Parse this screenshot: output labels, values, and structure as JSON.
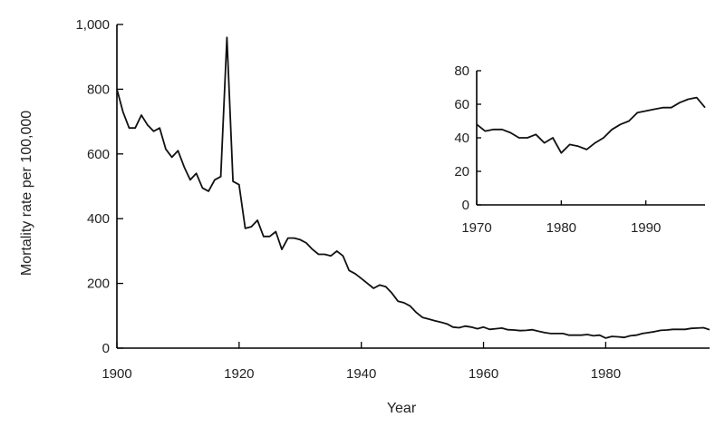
{
  "chart_data": [
    {
      "type": "line",
      "xlabel": "Year",
      "ylabel": "Mortality rate per 100,000",
      "xlim": [
        1900,
        1997
      ],
      "ylim": [
        0,
        1000
      ],
      "x_ticks": [
        1900,
        1920,
        1940,
        1960,
        1980
      ],
      "y_ticks": [
        0,
        200,
        400,
        600,
        800,
        1000
      ],
      "x_tick_labels": [
        "1900",
        "1920",
        "1940",
        "1960",
        "1980"
      ],
      "y_tick_labels": [
        "0",
        "200",
        "400",
        "600",
        "800",
        "1,000"
      ],
      "grid": false,
      "series": [
        {
          "x": [
            1900,
            1901,
            1902,
            1903,
            1904,
            1905,
            1906,
            1907,
            1908,
            1909,
            1910,
            1911,
            1912,
            1913,
            1914,
            1915,
            1916,
            1917,
            1918,
            1919,
            1920,
            1921,
            1922,
            1923,
            1924,
            1925,
            1926,
            1927,
            1928,
            1929,
            1930,
            1931,
            1932,
            1933,
            1934,
            1935,
            1936,
            1937,
            1938,
            1939,
            1940,
            1941,
            1942,
            1943,
            1944,
            1945,
            1946,
            1947,
            1948,
            1949,
            1950,
            1951,
            1952,
            1953,
            1954,
            1955,
            1956,
            1957,
            1958,
            1959,
            1960,
            1961,
            1962,
            1963,
            1964,
            1965,
            1966,
            1967,
            1968,
            1969,
            1970,
            1971,
            1972,
            1973,
            1974,
            1975,
            1976,
            1977,
            1978,
            1979,
            1980,
            1981,
            1982,
            1983,
            1984,
            1985,
            1986,
            1987,
            1988,
            1989,
            1990,
            1991,
            1992,
            1993,
            1994,
            1995,
            1996,
            1997
          ],
          "y": [
            800,
            730,
            680,
            680,
            720,
            690,
            670,
            680,
            615,
            590,
            610,
            560,
            520,
            540,
            495,
            485,
            520,
            530,
            960,
            515,
            505,
            370,
            375,
            395,
            345,
            345,
            360,
            305,
            340,
            340,
            335,
            325,
            305,
            290,
            290,
            285,
            300,
            285,
            240,
            230,
            215,
            200,
            185,
            195,
            190,
            170,
            145,
            140,
            130,
            110,
            95,
            90,
            85,
            80,
            75,
            65,
            63,
            68,
            65,
            60,
            65,
            58,
            60,
            62,
            57,
            56,
            54,
            55,
            57,
            52,
            48,
            45,
            45,
            45,
            40,
            40,
            40,
            42,
            38,
            40,
            31,
            36,
            35,
            33,
            38,
            40,
            45,
            48,
            51,
            55,
            56,
            58,
            58,
            58,
            61,
            62,
            63,
            57
          ]
        }
      ]
    },
    {
      "type": "line",
      "xlabel": "",
      "ylabel": "",
      "xlim": [
        1970,
        1997
      ],
      "ylim": [
        0,
        80
      ],
      "x_ticks": [
        1970,
        1980,
        1990
      ],
      "y_ticks": [
        0,
        20,
        40,
        60,
        80
      ],
      "x_tick_labels": [
        "1970",
        "1980",
        "1990"
      ],
      "y_tick_labels": [
        "0",
        "20",
        "40",
        "60",
        "80"
      ],
      "grid": false,
      "series": [
        {
          "x": [
            1970,
            1971,
            1972,
            1973,
            1974,
            1975,
            1976,
            1977,
            1978,
            1979,
            1980,
            1981,
            1982,
            1983,
            1984,
            1985,
            1986,
            1987,
            1988,
            1989,
            1990,
            1991,
            1992,
            1993,
            1994,
            1995,
            1996,
            1997
          ],
          "y": [
            48,
            44,
            45,
            45,
            43,
            40,
            40,
            42,
            37,
            40,
            31,
            36,
            35,
            33,
            37,
            40,
            45,
            48,
            50,
            55,
            56,
            57,
            58,
            58,
            61,
            63,
            64,
            58
          ]
        }
      ]
    }
  ]
}
